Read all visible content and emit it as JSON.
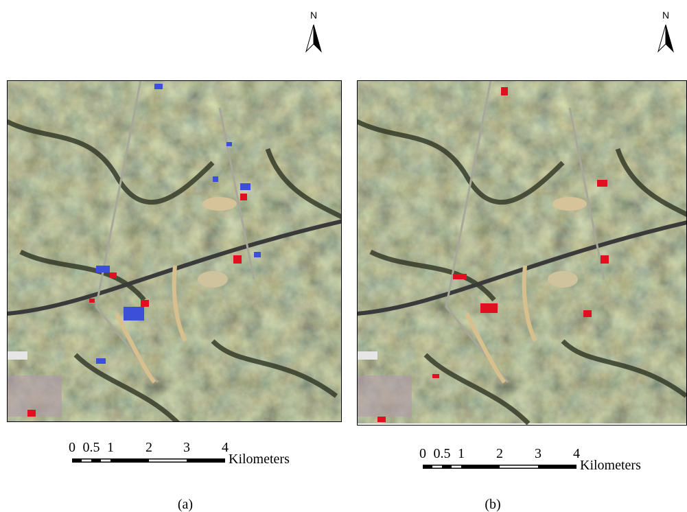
{
  "panels": [
    {
      "north": "N",
      "scale_labels": [
        "0",
        "0.5",
        "1",
        "2",
        "3",
        "4"
      ],
      "unit": "Kilometers",
      "caption": "(a)"
    },
    {
      "north": "N",
      "scale_labels": [
        "0",
        "0.5",
        "1",
        "2",
        "3",
        "4"
      ],
      "unit": "Kilometers",
      "caption": "(b)"
    }
  ]
}
